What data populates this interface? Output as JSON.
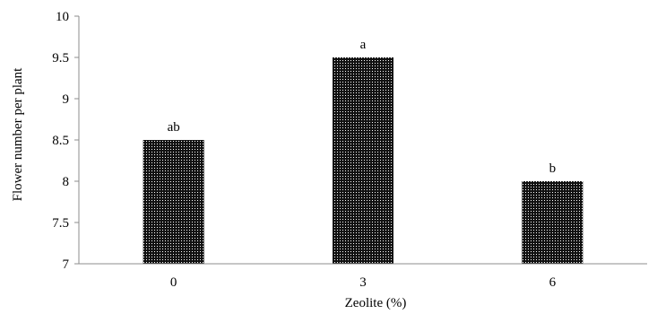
{
  "chart_data": {
    "type": "bar",
    "title": "",
    "xlabel": "Zeolite (%)",
    "ylabel": "Flower number per plant",
    "categories": [
      "0",
      "3",
      "6"
    ],
    "values": [
      8.5,
      9.5,
      8.0
    ],
    "data_labels": [
      "ab",
      "a",
      "b"
    ],
    "ylim": [
      7,
      10
    ],
    "yticks": [
      "7",
      "7.5",
      "8",
      "8.5",
      "9",
      "9.5",
      "10"
    ],
    "grid": false,
    "legend": "none",
    "bar_color": "#1a1a1a",
    "bar_pattern": "dotted"
  }
}
